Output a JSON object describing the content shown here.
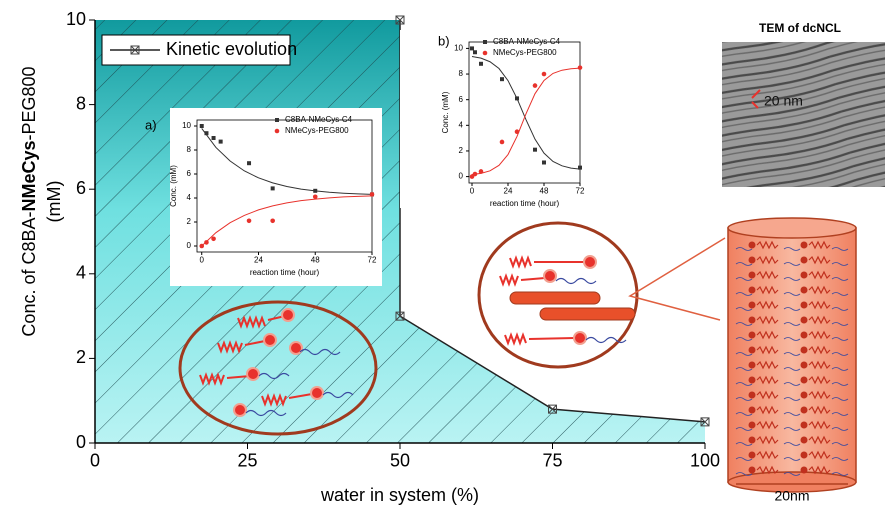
{
  "chart_data": [
    {
      "type": "line",
      "xlabel": "water in system (%)",
      "ylabel": [
        "Conc. of C8BA-",
        "NMeCys",
        "-PEG800",
        "(mM)"
      ],
      "xlim": [
        0,
        100
      ],
      "ylim": [
        0,
        10
      ],
      "xticks": [
        0,
        25,
        50,
        75,
        100
      ],
      "yticks": [
        0,
        2,
        4,
        6,
        8,
        10
      ],
      "x": [
        50,
        50,
        75,
        100
      ],
      "series": [
        {
          "name": "Kinetic evolution",
          "color": "#222222",
          "values": [
            10,
            3,
            0.8,
            0.5
          ]
        }
      ],
      "fill_color": "#3cc8cc",
      "hatch": true,
      "legend": "upper left"
    },
    {
      "type": "scatter",
      "label": "a)",
      "xlabel": "reaction time (hour)",
      "ylabel": "Conc. (mM)",
      "xlim": [
        -2,
        72
      ],
      "ylim": [
        -0.5,
        10.5
      ],
      "xticks": [
        0,
        24,
        48,
        72
      ],
      "yticks": [
        0,
        2,
        4,
        6,
        8,
        10
      ],
      "fit_x": [
        0,
        6,
        12,
        18,
        24,
        30,
        36,
        42,
        48,
        54,
        60,
        66,
        72
      ],
      "series": [
        {
          "name": "C8BA-NMeCys-C4",
          "color": "#333333",
          "marker": "square",
          "x": [
            0,
            2,
            5,
            8,
            20,
            30,
            48,
            72
          ],
          "values": [
            10,
            9.4,
            9,
            8.7,
            6.9,
            4.8,
            4.6,
            4.3
          ],
          "fit": [
            9.8,
            8.21,
            7.08,
            6.26,
            5.68,
            5.26,
            4.96,
            4.74,
            4.59,
            4.48,
            4.4,
            4.34,
            4.3
          ]
        },
        {
          "name": "NMeCys-PEG800",
          "color": "#e8322c",
          "marker": "circle",
          "x": [
            0,
            2,
            5,
            20,
            30,
            48,
            72
          ],
          "values": [
            0,
            0.3,
            0.6,
            2.1,
            2.1,
            4.1,
            4.3
          ],
          "fit": [
            0,
            1.11,
            1.94,
            2.55,
            3.01,
            3.34,
            3.59,
            3.78,
            3.91,
            4.01,
            4.09,
            4.14,
            4.18
          ]
        }
      ]
    },
    {
      "type": "scatter",
      "label": "b)",
      "xlabel": "reaction time (hour)",
      "ylabel": "Conc. (mM)",
      "xlim": [
        -2,
        72
      ],
      "ylim": [
        -0.5,
        10.5
      ],
      "xticks": [
        0,
        24,
        48,
        72
      ],
      "yticks": [
        0,
        2,
        4,
        6,
        8,
        10
      ],
      "fit_x": [
        0,
        6,
        12,
        18,
        24,
        30,
        36,
        42,
        48,
        54,
        60,
        66,
        72
      ],
      "series": [
        {
          "name": "C8BA-NMeCys-C4",
          "color": "#333333",
          "marker": "square",
          "x": [
            0,
            2,
            6,
            20,
            30,
            42,
            48,
            72
          ],
          "values": [
            10,
            9.7,
            8.8,
            7.6,
            6.1,
            2.1,
            1.1,
            0.7
          ],
          "fit": [
            9.37,
            9.24,
            8.96,
            8.43,
            7.49,
            6.1,
            4.44,
            2.92,
            1.83,
            1.18,
            0.84,
            0.66,
            0.58
          ]
        },
        {
          "name": "NMeCys-PEG800",
          "color": "#e8322c",
          "marker": "circle",
          "x": [
            0,
            2,
            6,
            20,
            30,
            42,
            48,
            72
          ],
          "values": [
            0,
            0.2,
            0.4,
            2.7,
            3.5,
            7.1,
            8,
            8.5
          ],
          "fit": [
            0.16,
            0.25,
            0.45,
            0.88,
            1.72,
            3.13,
            4.9,
            6.47,
            7.5,
            8.05,
            8.3,
            8.41,
            8.46
          ]
        }
      ]
    }
  ],
  "tem": {
    "title": "TEM of dcNCL",
    "scale_label": "20 nm"
  },
  "schematic": {
    "scale_label": "20nm"
  }
}
